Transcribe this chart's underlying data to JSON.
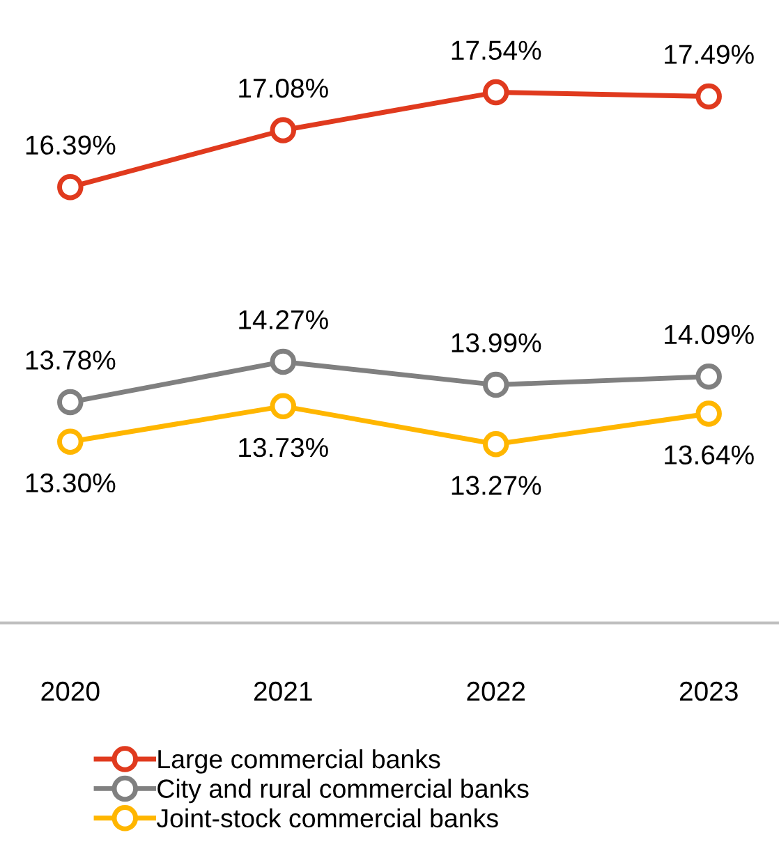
{
  "chart_data": {
    "type": "line",
    "categories": [
      "2020",
      "2021",
      "2022",
      "2023"
    ],
    "series": [
      {
        "name": "Large commercial banks",
        "color": "#e03a1e",
        "values": [
          16.39,
          17.08,
          17.54,
          17.49
        ],
        "value_labels": [
          "16.39%",
          "17.08%",
          "17.54%",
          "17.49%"
        ]
      },
      {
        "name": "City and rural commercial banks",
        "color": "#808080",
        "values": [
          13.78,
          14.27,
          13.99,
          14.09
        ],
        "value_labels": [
          "13.78%",
          "14.27%",
          "13.99%",
          "14.09%"
        ]
      },
      {
        "name": "Joint-stock commercial banks",
        "color": "#ffb600",
        "values": [
          13.3,
          13.73,
          13.27,
          13.64
        ],
        "value_labels": [
          "13.30%",
          "13.73%",
          "13.27%",
          "13.64%"
        ]
      }
    ],
    "marker": "circle",
    "line_style": "solid",
    "legend": "bottom",
    "grid": false
  }
}
